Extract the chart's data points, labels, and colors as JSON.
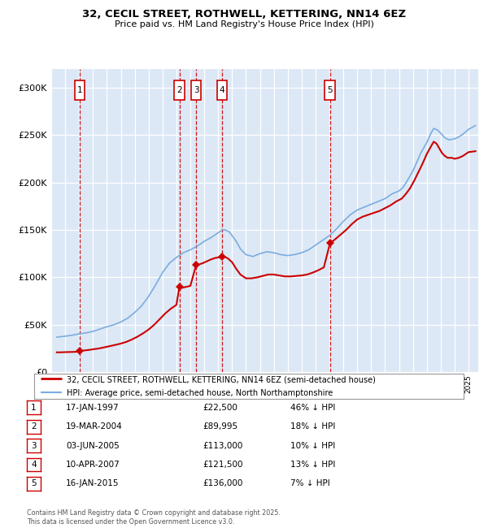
{
  "title": "32, CECIL STREET, ROTHWELL, KETTERING, NN14 6EZ",
  "subtitle": "Price paid vs. HM Land Registry's House Price Index (HPI)",
  "legend_line1": "32, CECIL STREET, ROTHWELL, KETTERING, NN14 6EZ (semi-detached house)",
  "legend_line2": "HPI: Average price, semi-detached house, North Northamptonshire",
  "footer": "Contains HM Land Registry data © Crown copyright and database right 2025.\nThis data is licensed under the Open Government Licence v3.0.",
  "transactions": [
    {
      "num": 1,
      "date": "17-JAN-1997",
      "price": 22500,
      "pct": "46%",
      "dir": "↓",
      "year_x": 1997.04
    },
    {
      "num": 2,
      "date": "19-MAR-2004",
      "price": 89995,
      "pct": "18%",
      "dir": "↓",
      "year_x": 2004.21
    },
    {
      "num": 3,
      "date": "03-JUN-2005",
      "price": 113000,
      "pct": "10%",
      "dir": "↓",
      "year_x": 2005.42
    },
    {
      "num": 4,
      "date": "10-APR-2007",
      "price": 121500,
      "pct": "13%",
      "dir": "↓",
      "year_x": 2007.27
    },
    {
      "num": 5,
      "date": "16-JAN-2015",
      "price": 136000,
      "pct": "7%",
      "dir": "↓",
      "year_x": 2015.04
    }
  ],
  "ylim": [
    0,
    320000
  ],
  "yticks": [
    0,
    50000,
    100000,
    150000,
    200000,
    250000,
    300000
  ],
  "ytick_labels": [
    "£0",
    "£50K",
    "£100K",
    "£150K",
    "£200K",
    "£250K",
    "£300K"
  ],
  "xlim_start": 1995.4,
  "xlim_end": 2025.7,
  "plot_bg": "#dce8f5",
  "red_color": "#cc0000",
  "blue_color": "#7aade0",
  "hpi_x": [
    1995.4,
    1995.7,
    1996.0,
    1996.5,
    1997.0,
    1997.5,
    1998.0,
    1998.5,
    1999.0,
    1999.5,
    2000.0,
    2000.5,
    2001.0,
    2001.5,
    2002.0,
    2002.5,
    2003.0,
    2003.5,
    2004.0,
    2004.5,
    2005.0,
    2005.5,
    2006.0,
    2006.5,
    2007.0,
    2007.3,
    2007.5,
    2007.8,
    2008.0,
    2008.3,
    2008.6,
    2009.0,
    2009.5,
    2010.0,
    2010.5,
    2011.0,
    2011.5,
    2012.0,
    2012.5,
    2013.0,
    2013.5,
    2014.0,
    2014.5,
    2015.0,
    2015.5,
    2016.0,
    2016.5,
    2017.0,
    2017.5,
    2018.0,
    2018.5,
    2019.0,
    2019.5,
    2020.0,
    2020.3,
    2020.6,
    2021.0,
    2021.3,
    2021.6,
    2022.0,
    2022.3,
    2022.5,
    2022.8,
    2023.0,
    2023.3,
    2023.6,
    2024.0,
    2024.3,
    2024.6,
    2025.0,
    2025.5
  ],
  "hpi_y": [
    37000,
    37500,
    38000,
    39000,
    40500,
    41500,
    43000,
    45500,
    48000,
    50000,
    53000,
    57000,
    63000,
    70000,
    80000,
    92000,
    105000,
    115000,
    121000,
    126000,
    129000,
    133000,
    138000,
    142000,
    147000,
    150000,
    150000,
    148000,
    144000,
    138000,
    130000,
    124000,
    122000,
    125000,
    127000,
    126000,
    124000,
    123000,
    124000,
    126000,
    129000,
    134000,
    139000,
    144000,
    151000,
    159000,
    166000,
    171000,
    174000,
    177000,
    180000,
    183000,
    188000,
    191000,
    195000,
    202000,
    212000,
    222000,
    232000,
    242000,
    252000,
    257000,
    255000,
    252000,
    247000,
    245000,
    246000,
    248000,
    251000,
    256000,
    260000
  ],
  "prop_x": [
    1995.4,
    1995.7,
    1996.0,
    1996.3,
    1996.6,
    1996.9,
    1997.04,
    1997.1,
    1997.4,
    1997.7,
    1998.0,
    1998.4,
    1998.8,
    1999.2,
    1999.6,
    2000.0,
    2000.4,
    2000.8,
    2001.2,
    2001.6,
    2002.0,
    2002.4,
    2002.8,
    2003.2,
    2003.6,
    2004.0,
    2004.21,
    2004.4,
    2004.7,
    2005.0,
    2005.42,
    2005.6,
    2005.9,
    2006.2,
    2006.5,
    2006.8,
    2007.0,
    2007.27,
    2007.5,
    2007.7,
    2008.0,
    2008.3,
    2008.6,
    2009.0,
    2009.4,
    2009.8,
    2010.2,
    2010.6,
    2011.0,
    2011.4,
    2011.8,
    2012.2,
    2012.6,
    2013.0,
    2013.4,
    2013.8,
    2014.2,
    2014.6,
    2015.04,
    2015.4,
    2015.8,
    2016.2,
    2016.6,
    2017.0,
    2017.4,
    2017.8,
    2018.2,
    2018.6,
    2019.0,
    2019.4,
    2019.8,
    2020.2,
    2020.5,
    2020.8,
    2021.1,
    2021.4,
    2021.7,
    2022.0,
    2022.3,
    2022.5,
    2022.7,
    2022.9,
    2023.1,
    2023.3,
    2023.5,
    2023.8,
    2024.0,
    2024.3,
    2024.6,
    2025.0,
    2025.5
  ],
  "prop_y": [
    21000,
    21000,
    21200,
    21300,
    21400,
    21700,
    22500,
    22500,
    23000,
    23500,
    24200,
    25000,
    26200,
    27500,
    28800,
    30200,
    32000,
    34500,
    37500,
    41000,
    45000,
    50000,
    56000,
    62000,
    67000,
    71000,
    89995,
    89000,
    90000,
    91000,
    113000,
    113500,
    115000,
    117000,
    119000,
    120500,
    121000,
    121500,
    121500,
    120000,
    116000,
    109000,
    103000,
    99000,
    99000,
    100000,
    101500,
    103000,
    103000,
    102000,
    101000,
    101000,
    101500,
    102000,
    103000,
    105000,
    107500,
    110500,
    136000,
    140000,
    145000,
    150000,
    156000,
    161000,
    164000,
    166000,
    168000,
    170000,
    173000,
    176000,
    180000,
    183000,
    188000,
    194000,
    202000,
    211000,
    220000,
    230000,
    238000,
    243000,
    241000,
    236000,
    231000,
    228000,
    226000,
    226000,
    225000,
    226000,
    228000,
    232000,
    233000
  ]
}
